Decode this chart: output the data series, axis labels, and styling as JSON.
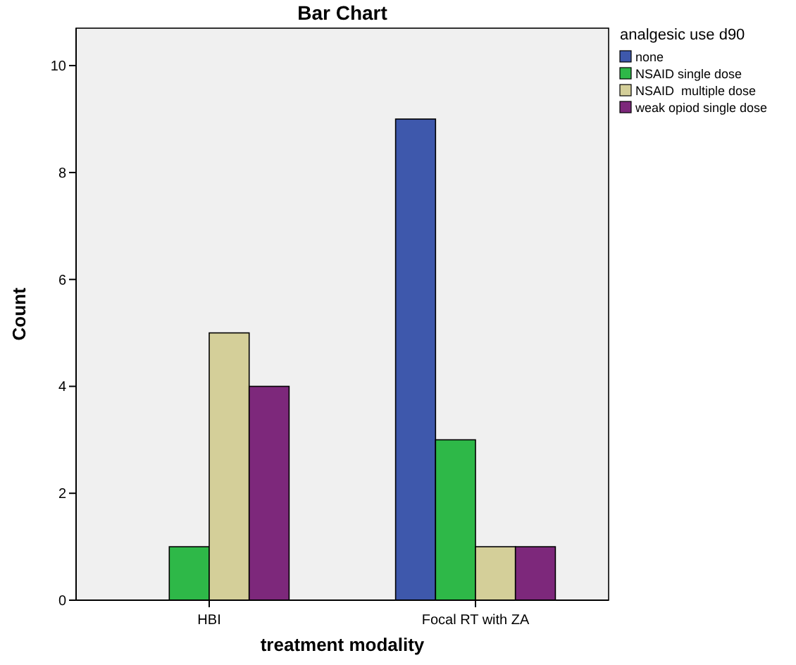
{
  "chart_data": {
    "type": "bar",
    "title": "Bar Chart",
    "xlabel": "treatment modality",
    "ylabel": "Count",
    "legend_title": "analgesic use d90",
    "categories": [
      "HBI",
      "Focal RT with ZA"
    ],
    "series": [
      {
        "name": "none",
        "color": "#3e58ac",
        "values": [
          null,
          9
        ]
      },
      {
        "name": "NSAID single dose",
        "color": "#2eb848",
        "values": [
          1,
          3
        ]
      },
      {
        "name": "NSAID  multiple dose",
        "color": "#d4cf99",
        "values": [
          5,
          1
        ]
      },
      {
        "name": "weak opiod single dose",
        "color": "#7d287b",
        "values": [
          4,
          1
        ]
      }
    ],
    "ylim": [
      0,
      10.7
    ],
    "yticks": [
      0,
      2,
      4,
      6,
      8,
      10
    ],
    "legend": "top right",
    "grid": false
  }
}
